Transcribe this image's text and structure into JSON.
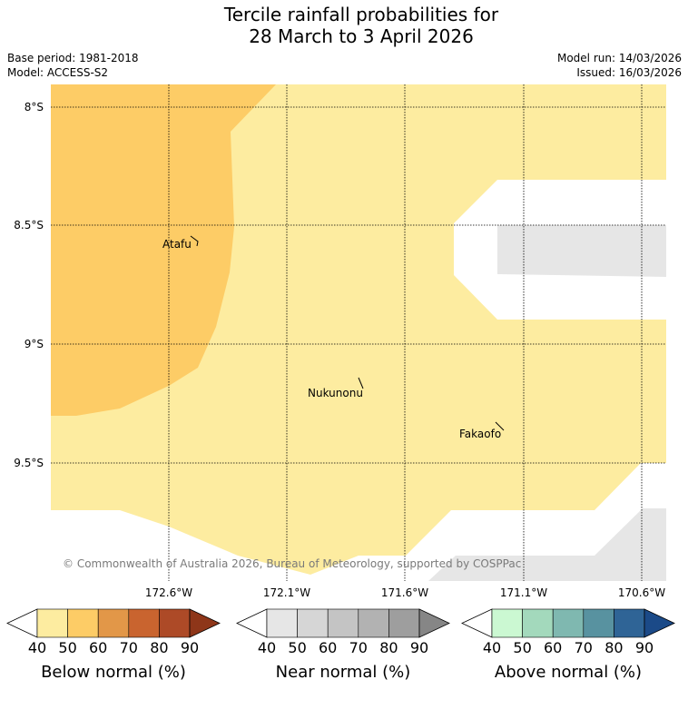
{
  "title_line1": "Tercile rainfall probabilities for",
  "title_line2": "28 March to 3 April 2026",
  "meta_left": [
    "Base period: 1981-2018",
    "Model: ACCESS-S2"
  ],
  "meta_right": [
    "Model run: 14/03/2026",
    "Issued: 16/03/2026"
  ],
  "latitudes": [
    "8°S",
    "8.5°S",
    "9°S",
    "9.5°S"
  ],
  "longitudes": [
    "172.6°W",
    "172.1°W",
    "171.6°W",
    "171.1°W",
    "170.6°W"
  ],
  "places": [
    "Atafu",
    "Nukunonu",
    "Fakaofo"
  ],
  "copyright": "© Commonwealth of Australia 2026, Bureau of Meteorology, supported by COSPPac",
  "colorbars": [
    {
      "title": "Below normal (%)",
      "ticks": [
        "40",
        "50",
        "60",
        "70",
        "80",
        "90"
      ],
      "colors": [
        "#ffffff",
        "#fdeca0",
        "#fdcc66",
        "#e29748",
        "#c9642f",
        "#ad4a27",
        "#8e3619"
      ]
    },
    {
      "title": "Near normal (%)",
      "ticks": [
        "40",
        "50",
        "60",
        "70",
        "80",
        "90"
      ],
      "colors": [
        "#ffffff",
        "#e6e6e6",
        "#d6d6d6",
        "#c4c4c4",
        "#b2b2b2",
        "#9e9e9e",
        "#868686"
      ]
    },
    {
      "title": "Above normal (%)",
      "ticks": [
        "40",
        "50",
        "60",
        "70",
        "80",
        "90"
      ],
      "colors": [
        "#ffffff",
        "#cbf8d2",
        "#a3d9bc",
        "#7fb8b0",
        "#5892a0",
        "#2f6496",
        "#1b4a88"
      ]
    }
  ]
}
